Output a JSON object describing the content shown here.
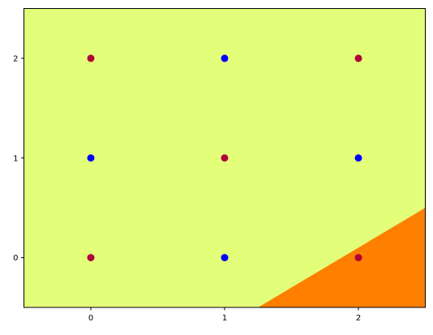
{
  "chart_data": {
    "type": "scatter",
    "title": "",
    "xlabel": "",
    "ylabel": "",
    "xlim": [
      -0.5,
      2.5
    ],
    "ylim": [
      -0.5,
      2.5
    ],
    "x_ticks": [
      "0",
      "1",
      "2"
    ],
    "y_ticks": [
      "0",
      "1",
      "2"
    ],
    "grid": false,
    "legend": "none",
    "background_regions": {
      "upper_region_color": "#e3ff7a",
      "lower_right_region_color": "#ff8000",
      "boundary_line": {
        "x0": 1.25,
        "y0": -0.5,
        "x1": 2.5,
        "y1": 0.5
      }
    },
    "series": [
      {
        "color": "#b0003a",
        "points": [
          {
            "x": 0,
            "y": 2
          },
          {
            "x": 2,
            "y": 2
          },
          {
            "x": 1,
            "y": 1
          },
          {
            "x": 0,
            "y": 0
          },
          {
            "x": 2,
            "y": 0
          }
        ]
      },
      {
        "color": "#0000ff",
        "points": [
          {
            "x": 1,
            "y": 2
          },
          {
            "x": 0,
            "y": 1
          },
          {
            "x": 2,
            "y": 1
          },
          {
            "x": 1,
            "y": 0
          }
        ]
      }
    ]
  }
}
